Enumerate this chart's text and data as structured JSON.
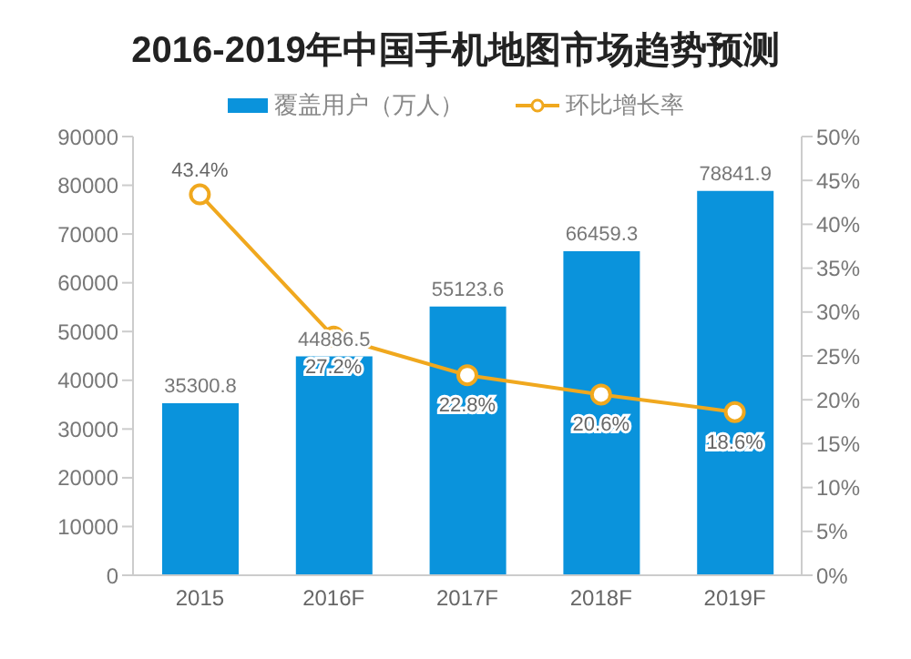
{
  "chart_data": {
    "type": "bar",
    "title": "2016-2019年中国手机地图市场趋势预测",
    "categories": [
      "2015",
      "2016F",
      "2017F",
      "2018F",
      "2019F"
    ],
    "series": [
      {
        "name": "覆盖用户（万人）",
        "color": "#0a93dc",
        "values": [
          35300.8,
          44886.5,
          55123.6,
          66459.3,
          78841.9
        ],
        "value_labels": [
          "35300.8",
          "44886.5",
          "55123.6",
          "66459.3",
          "78841.9"
        ]
      },
      {
        "name": "环比增长率",
        "type": "line",
        "axis": "y2",
        "color": "#f0a81e",
        "values": [
          43.4,
          27.2,
          22.8,
          20.6,
          18.6
        ],
        "value_labels": [
          "43.4%",
          "27.2%",
          "22.8%",
          "20.6%",
          "18.6%"
        ]
      }
    ],
    "ylim": [
      0,
      90000
    ],
    "yticks": [
      0,
      10000,
      20000,
      30000,
      40000,
      50000,
      60000,
      70000,
      80000,
      90000
    ],
    "y2lim": [
      0,
      50
    ],
    "y2ticks": [
      {
        "value": 0,
        "label": "0%"
      },
      {
        "value": 5,
        "label": "5%"
      },
      {
        "value": 10,
        "label": "10%"
      },
      {
        "value": 15,
        "label": "15%"
      },
      {
        "value": 20,
        "label": "20%"
      },
      {
        "value": 25,
        "label": "25%"
      },
      {
        "value": 30,
        "label": "30%"
      },
      {
        "value": 35,
        "label": "35%"
      },
      {
        "value": 40,
        "label": "40%"
      },
      {
        "value": 45,
        "label": "45%"
      },
      {
        "value": 50,
        "label": "50%"
      }
    ],
    "legend": "top",
    "marker": "circle",
    "grid": false
  }
}
